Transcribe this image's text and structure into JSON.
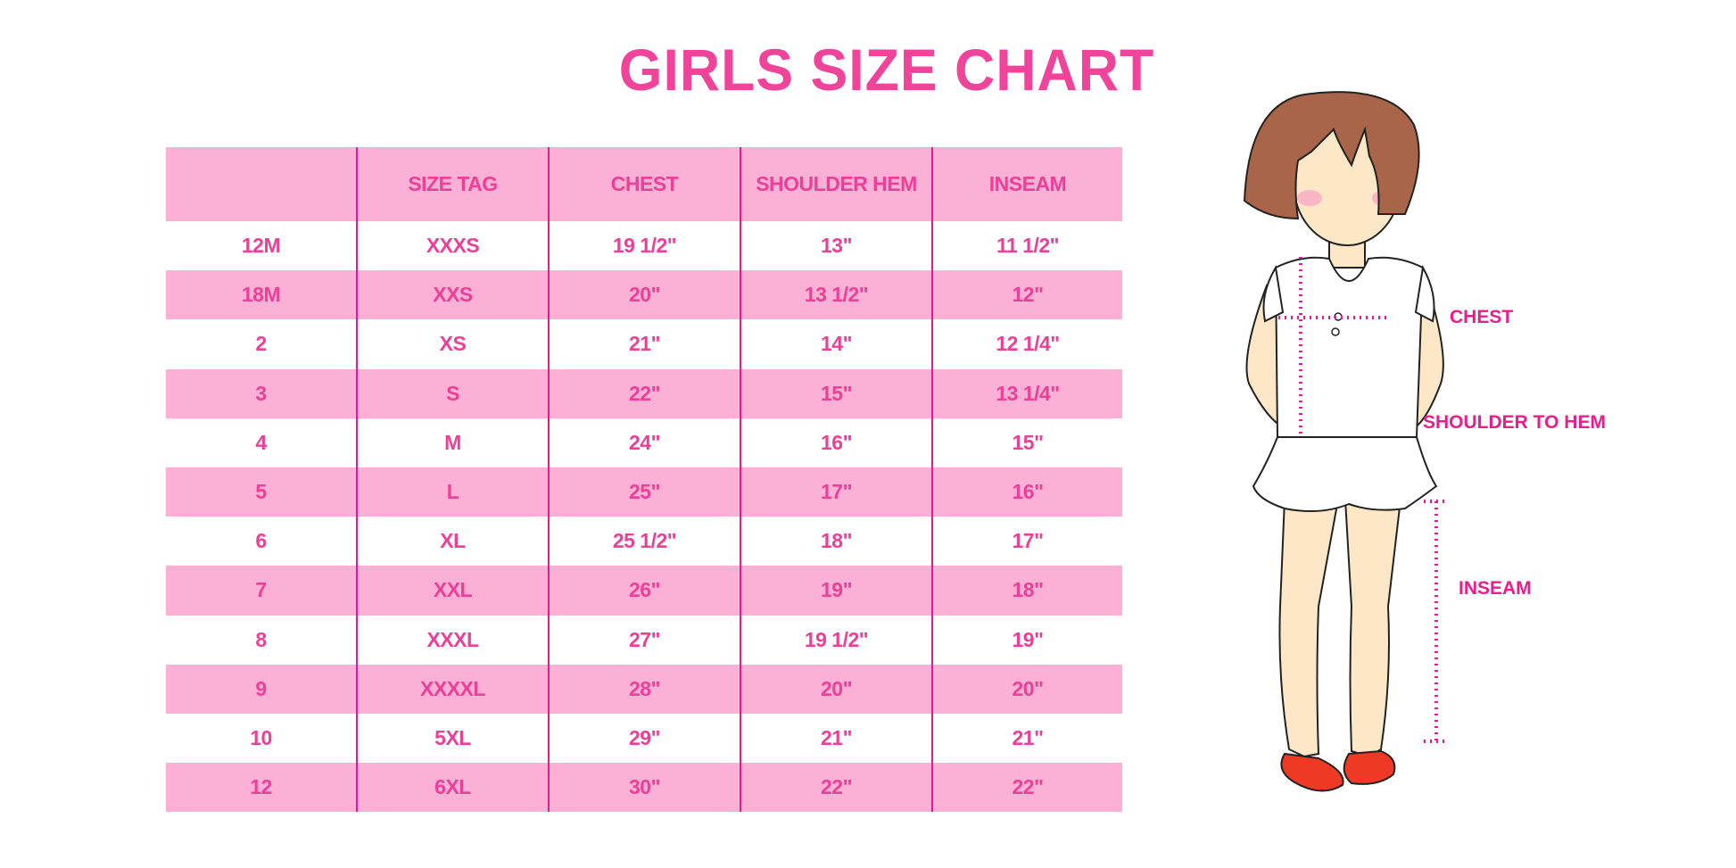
{
  "title": "GIRLS SIZE CHART",
  "table": {
    "headers": [
      "",
      "SIZE TAG",
      "CHEST",
      "SHOULDER HEM",
      "INSEAM"
    ],
    "rows": [
      [
        "12M",
        "XXXS",
        "19 1/2\"",
        "13\"",
        "11 1/2\""
      ],
      [
        "18M",
        "XXS",
        "20\"",
        "13 1/2\"",
        "12\""
      ],
      [
        "2",
        "XS",
        "21\"",
        "14\"",
        "12 1/4\""
      ],
      [
        "3",
        "S",
        "22\"",
        "15\"",
        "13 1/4\""
      ],
      [
        "4",
        "M",
        "24\"",
        "16\"",
        "15\""
      ],
      [
        "5",
        "L",
        "25\"",
        "17\"",
        "16\""
      ],
      [
        "6",
        "XL",
        "25 1/2\"",
        "18\"",
        "17\""
      ],
      [
        "7",
        "XXL",
        "26\"",
        "19\"",
        "18\""
      ],
      [
        "8",
        "XXXL",
        "27\"",
        "19 1/2\"",
        "19\""
      ],
      [
        "9",
        "XXXXL",
        "28\"",
        "20\"",
        "20\""
      ],
      [
        "10",
        "5XL",
        "29\"",
        "21\"",
        "21\""
      ],
      [
        "12",
        "6XL",
        "30\"",
        "22\"",
        "22\""
      ]
    ]
  },
  "diagram": {
    "labels": {
      "chest": "CHEST",
      "shoulder_to_hem": "SHOULDER TO HEM",
      "inseam": "INSEAM"
    }
  },
  "colors": {
    "accent": "#ee3f98",
    "row_fill": "#fcb0d5",
    "divider": "#e8189a"
  }
}
